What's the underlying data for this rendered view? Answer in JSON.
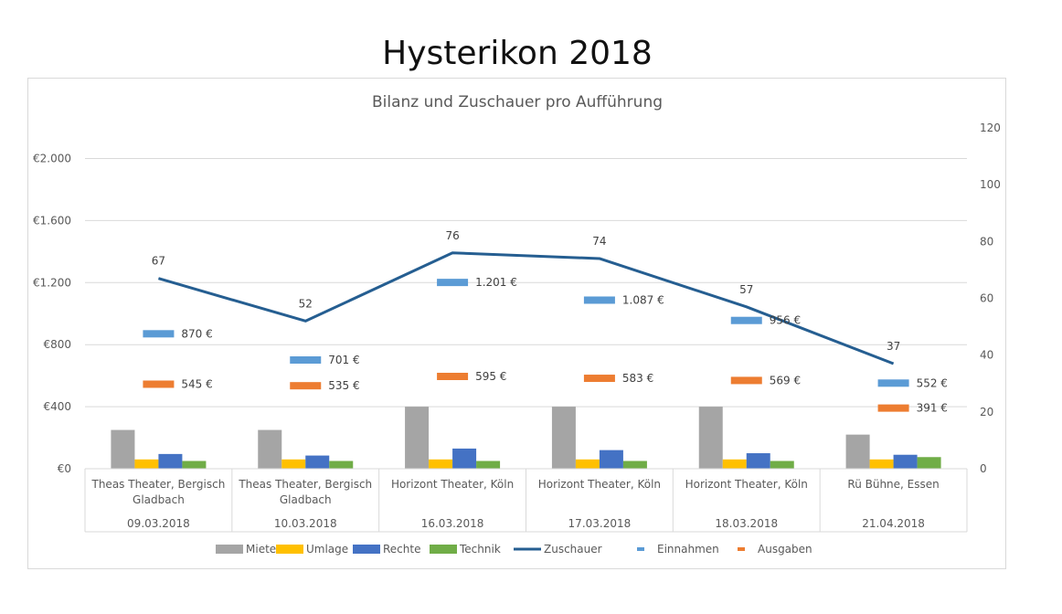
{
  "page_title": "Hysterikon 2018",
  "chart_data": {
    "type": "bar",
    "title": "Bilanz und Zuschauer pro Aufführung",
    "categories": [
      {
        "venue": "Theas Theater, Bergisch Gladbach",
        "venue_lines": [
          "Theas Theater, Bergisch",
          "Gladbach"
        ],
        "date": "09.03.2018"
      },
      {
        "venue": "Theas Theater, Bergisch Gladbach",
        "venue_lines": [
          "Theas Theater, Bergisch",
          "Gladbach"
        ],
        "date": "10.03.2018"
      },
      {
        "venue": "Horizont Theater, Köln",
        "venue_lines": [
          "Horizont Theater, Köln"
        ],
        "date": "16.03.2018"
      },
      {
        "venue": "Horizont Theater, Köln",
        "venue_lines": [
          "Horizont Theater, Köln"
        ],
        "date": "17.03.2018"
      },
      {
        "venue": "Horizont Theater, Köln",
        "venue_lines": [
          "Horizont Theater, Köln"
        ],
        "date": "18.03.2018"
      },
      {
        "venue": "Rü Bühne, Essen",
        "venue_lines": [
          "Rü Bühne, Essen"
        ],
        "date": "21.04.2018"
      }
    ],
    "bar_series": [
      {
        "name": "Miete",
        "color": "#a5a5a5",
        "values": [
          250,
          250,
          400,
          400,
          400,
          220
        ]
      },
      {
        "name": "Umlage",
        "color": "#ffc000",
        "values": [
          60,
          60,
          60,
          60,
          60,
          60
        ]
      },
      {
        "name": "Rechte",
        "color": "#4472c4",
        "values": [
          95,
          85,
          130,
          120,
          100,
          90
        ]
      },
      {
        "name": "Technik",
        "color": "#70ad47",
        "values": [
          50,
          50,
          50,
          50,
          50,
          75
        ]
      }
    ],
    "line_series": {
      "name": "Zuschauer",
      "color": "#255e91",
      "axis": "right",
      "values": [
        67,
        52,
        76,
        74,
        57,
        37
      ],
      "labels": [
        "67",
        "52",
        "76",
        "74",
        "57",
        "37"
      ]
    },
    "marker_series": [
      {
        "name": "Einnahmen",
        "color": "#5b9bd5",
        "values": [
          870,
          701,
          1201,
          1087,
          956,
          552
        ],
        "labels": [
          "870 €",
          "701 €",
          "1.201 €",
          "1.087 €",
          "956 €",
          "552 €"
        ]
      },
      {
        "name": "Ausgaben",
        "color": "#ed7d31",
        "values": [
          545,
          535,
          595,
          583,
          569,
          391
        ],
        "labels": [
          "545 €",
          "535 €",
          "595 €",
          "583 €",
          "569 €",
          "391 €"
        ]
      }
    ],
    "y_left": {
      "ticks": [
        0,
        400,
        800,
        1200,
        1600,
        2000
      ],
      "tick_labels": [
        "€0",
        "€400",
        "€800",
        "€1.200",
        "€1.600",
        "€2.000"
      ],
      "range": [
        0,
        2000
      ]
    },
    "y_right": {
      "ticks": [
        0,
        20,
        40,
        60,
        80,
        100,
        120
      ],
      "tick_labels": [
        "0",
        "20",
        "40",
        "60",
        "80",
        "100",
        "120"
      ],
      "range": [
        0,
        120
      ]
    },
    "grid": true,
    "legend": {
      "placement": "bottom",
      "items": [
        {
          "label": "Miete",
          "kind": "box",
          "color": "#a5a5a5"
        },
        {
          "label": "Umlage",
          "kind": "box",
          "color": "#ffc000"
        },
        {
          "label": "Rechte",
          "kind": "box",
          "color": "#4472c4"
        },
        {
          "label": "Technik",
          "kind": "box",
          "color": "#70ad47"
        },
        {
          "label": "Zuschauer",
          "kind": "line",
          "color": "#255e91"
        },
        {
          "label": "Einnahmen",
          "kind": "dash",
          "color": "#5b9bd5"
        },
        {
          "label": "Ausgaben",
          "kind": "dash",
          "color": "#ed7d31"
        }
      ]
    }
  }
}
